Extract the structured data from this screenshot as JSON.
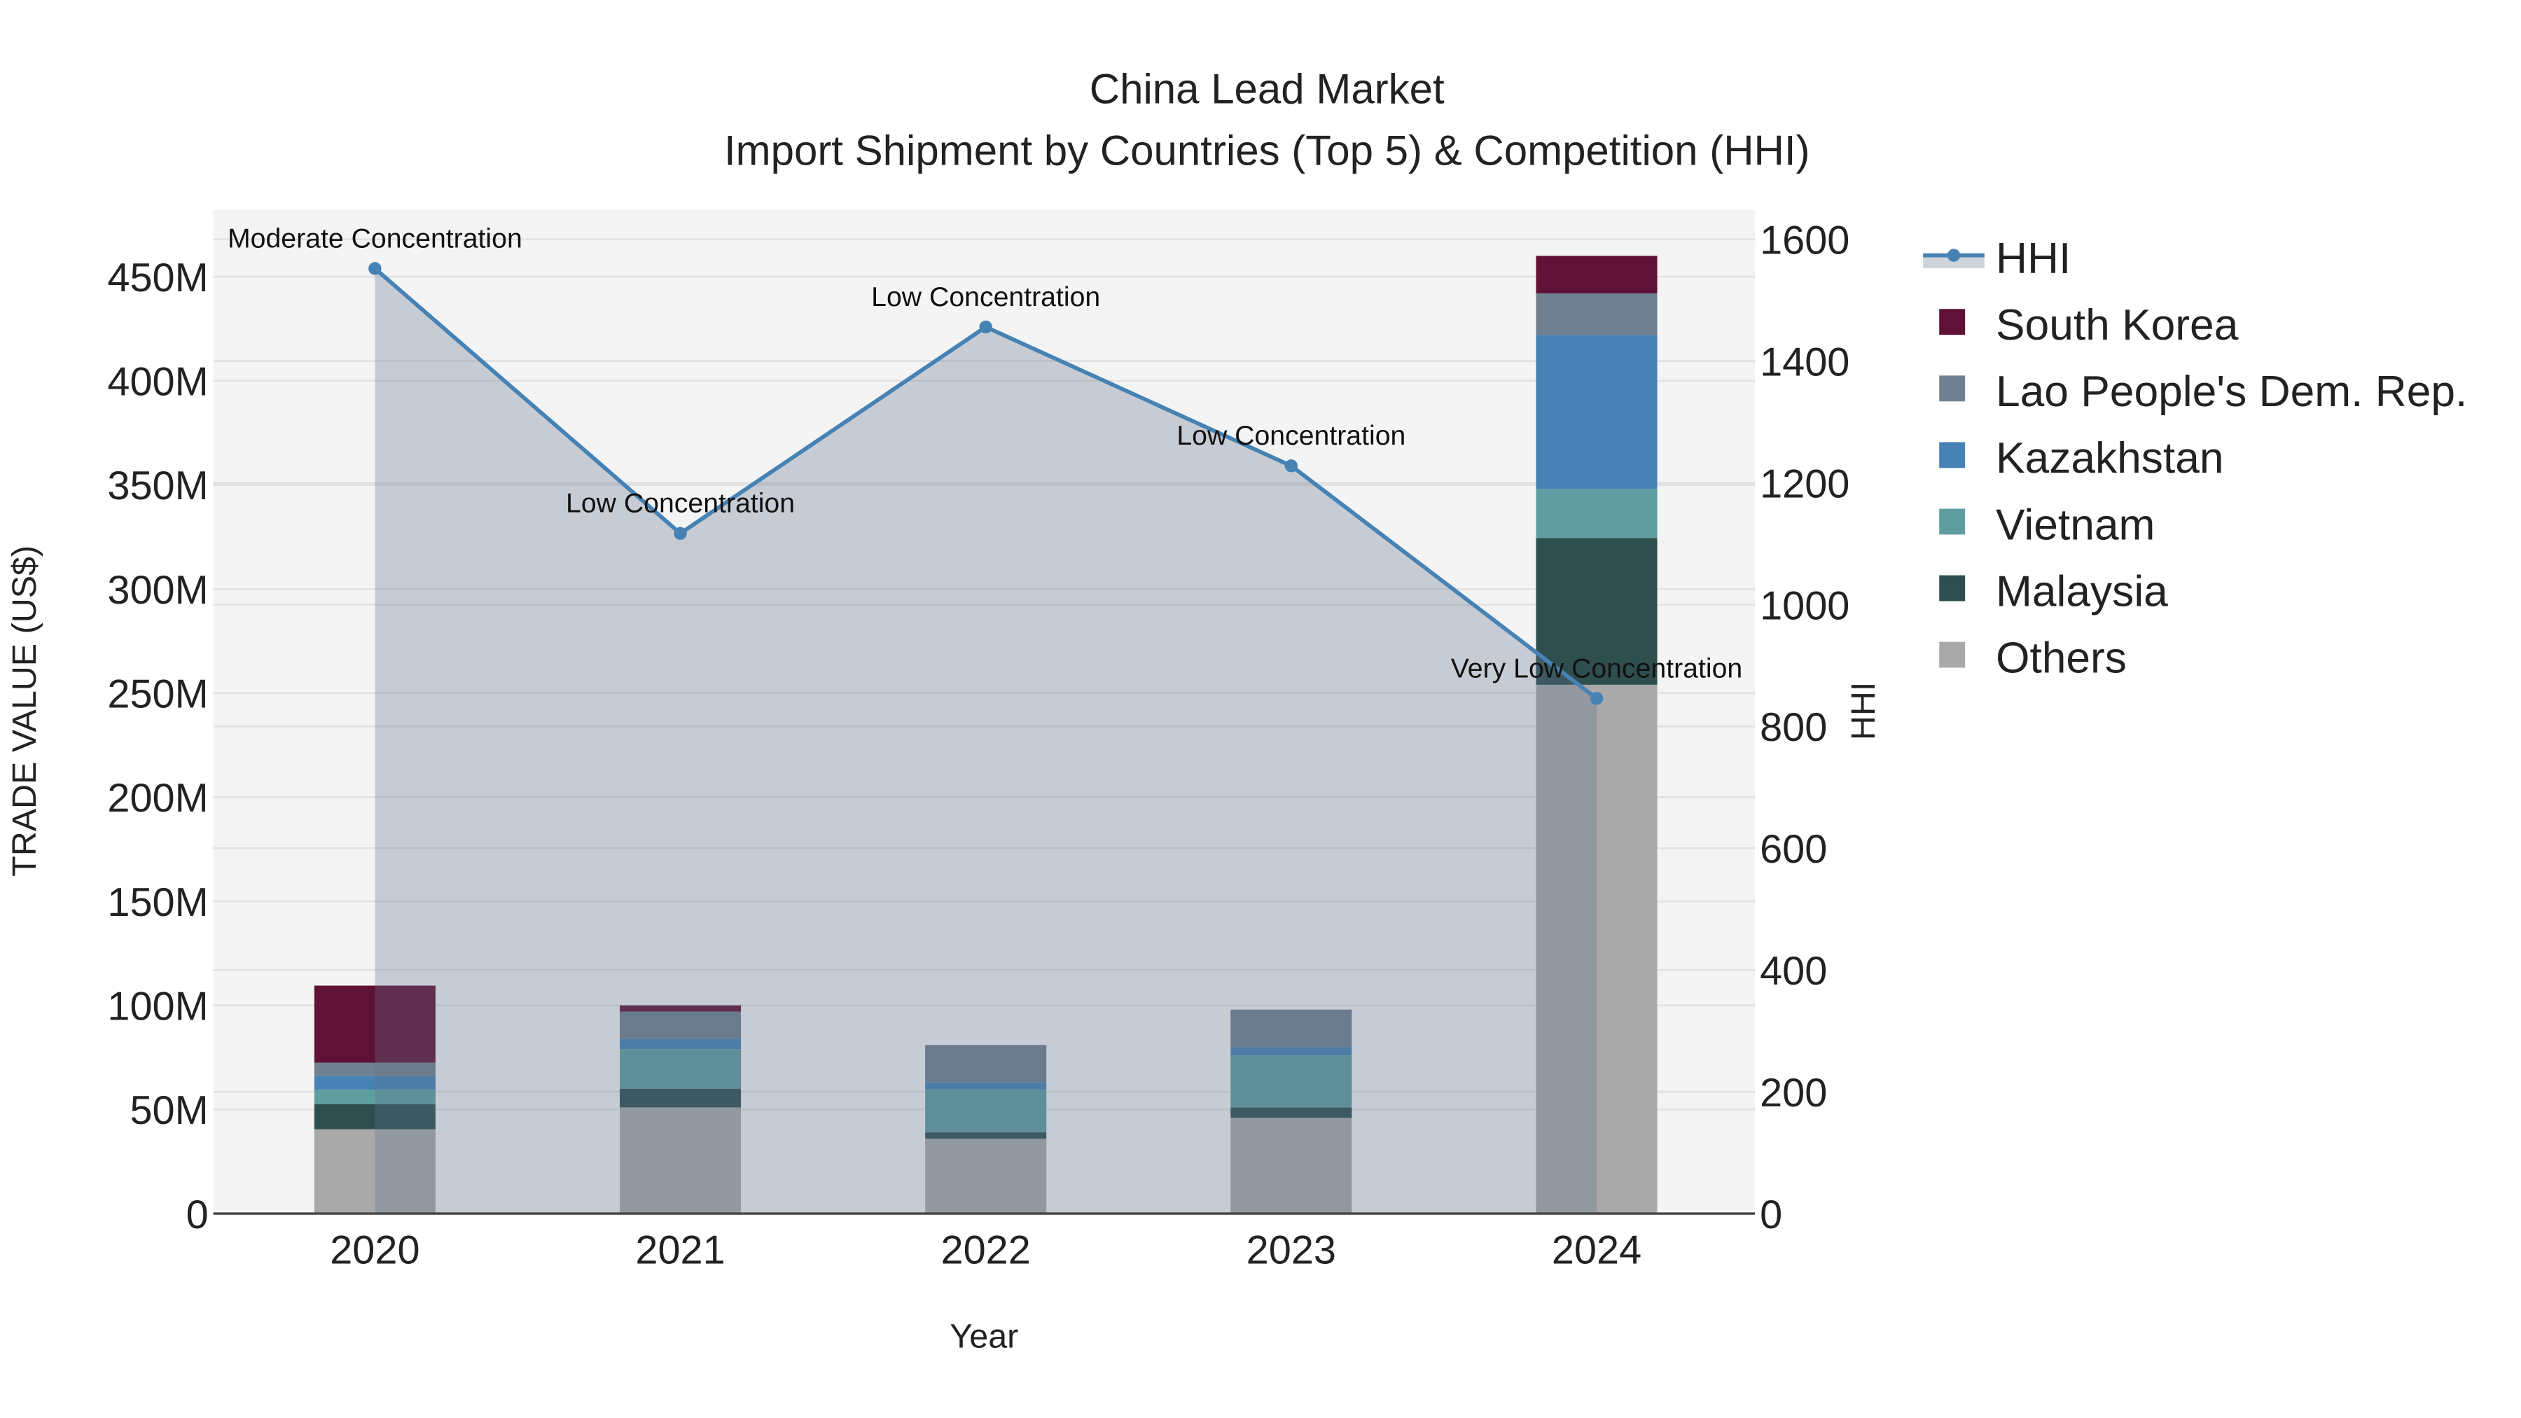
{
  "chart_data": {
    "type": "bar",
    "title": "China Lead Market",
    "subtitle": "Import Shipment by Countries (Top 5) & Competition (HHI)",
    "xlabel": "Year",
    "ylabel": "TRADE VALUE (US$)",
    "y2label": "HHI",
    "categories": [
      "2020",
      "2021",
      "2022",
      "2023",
      "2024"
    ],
    "ylim": [
      0,
      482
    ],
    "y_ticks": [
      0,
      50,
      100,
      150,
      200,
      250,
      300,
      350,
      400,
      450
    ],
    "y_tick_labels": [
      "0",
      "50M",
      "100M",
      "150M",
      "200M",
      "250M",
      "300M",
      "350M",
      "400M",
      "450M"
    ],
    "y2lim": [
      0,
      1648
    ],
    "y2_ticks": [
      0,
      200,
      400,
      600,
      800,
      1000,
      1200,
      1400,
      1600
    ],
    "y2_tick_labels": [
      "0",
      "200",
      "400",
      "600",
      "800",
      "1000",
      "1200",
      "1400",
      "1600"
    ],
    "units": "million US$",
    "stacked_series": [
      {
        "name": "Others",
        "color": "#a9a9a9",
        "values": [
          40.5,
          51,
          36,
          46,
          254
        ]
      },
      {
        "name": "Malaysia",
        "color": "#2f4f4f",
        "values": [
          12,
          9,
          3,
          5,
          70.5
        ]
      },
      {
        "name": "Vietnam",
        "color": "#5f9ea0",
        "values": [
          7,
          19,
          20.5,
          25,
          23.5
        ]
      },
      {
        "name": "Kazakhstan",
        "color": "#4682b4",
        "values": [
          6.5,
          5,
          3.5,
          4,
          74
        ]
      },
      {
        "name": "Lao People's Dem. Rep.",
        "color": "#708090",
        "values": [
          6.5,
          13,
          18,
          18,
          20
        ]
      },
      {
        "name": "South Korea",
        "color": "#601236",
        "values": [
          37,
          3,
          0,
          0,
          18
        ]
      }
    ],
    "line_series": {
      "name": "HHI",
      "color": "#4682b4",
      "values": [
        1552,
        1117,
        1456,
        1228,
        846
      ],
      "annotations": [
        "Moderate Concentration",
        "Low Concentration",
        "Low Concentration",
        "Low Concentration",
        "Very Low Concentration"
      ]
    },
    "legend": [
      "HHI",
      "South Korea",
      "Lao People's Dem. Rep.",
      "Kazakhstan",
      "Vietnam",
      "Malaysia",
      "Others"
    ],
    "legend_position": "right",
    "grid": true
  }
}
